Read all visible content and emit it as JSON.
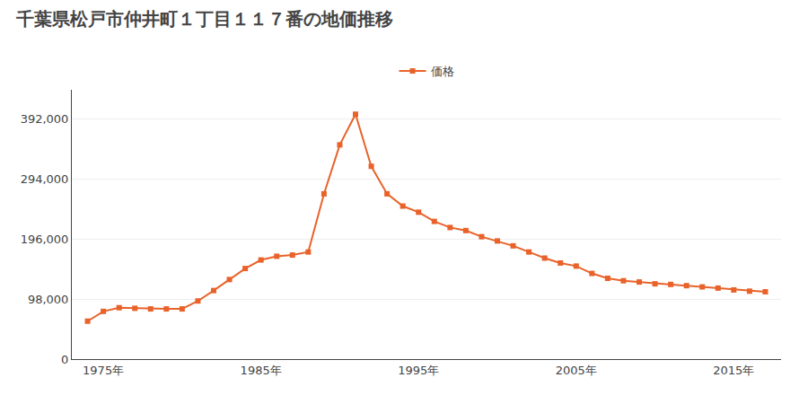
{
  "chart_data": {
    "type": "line",
    "title": "千葉県松戸市仲井町１丁目１１７番の地価推移",
    "x": [
      1974,
      1975,
      1976,
      1977,
      1978,
      1979,
      1980,
      1981,
      1982,
      1983,
      1984,
      1985,
      1986,
      1987,
      1988,
      1989,
      1990,
      1991,
      1992,
      1993,
      1994,
      1995,
      1996,
      1997,
      1998,
      1999,
      2000,
      2001,
      2002,
      2003,
      2004,
      2005,
      2006,
      2007,
      2008,
      2009,
      2010,
      2011,
      2012,
      2013,
      2014,
      2015,
      2016,
      2017
    ],
    "series": [
      {
        "name": "価格",
        "color": "#e8622a",
        "marker": "square",
        "line_style": "solid",
        "values": [
          62000,
          78000,
          84000,
          83000,
          82000,
          82000,
          82000,
          95000,
          112000,
          130000,
          148000,
          162000,
          168000,
          170000,
          175000,
          270000,
          350000,
          400000,
          315000,
          270000,
          250000,
          240000,
          225000,
          215000,
          210000,
          200000,
          193000,
          185000,
          175000,
          165000,
          157000,
          152000,
          140000,
          132000,
          128000,
          126000,
          123000,
          122000,
          120000,
          118000,
          116000,
          113000,
          111000,
          110000
        ]
      }
    ],
    "xlim": [
      1973,
      2018
    ],
    "xticks": [
      {
        "value": 1975,
        "label": "1975年"
      },
      {
        "value": 1985,
        "label": "1985年"
      },
      {
        "value": 1995,
        "label": "1995年"
      },
      {
        "value": 2005,
        "label": "2005年"
      },
      {
        "value": 2015,
        "label": "2015年"
      }
    ],
    "ylim": [
      0,
      440000
    ],
    "yticks": [
      0,
      {
        "value": 98000,
        "label": "98,000"
      },
      {
        "value": 196000,
        "label": "196,000"
      },
      {
        "value": 294000,
        "label": "294,000"
      },
      {
        "value": 392000,
        "label": "392,000"
      }
    ],
    "grid": "y",
    "legend": "upper center"
  }
}
